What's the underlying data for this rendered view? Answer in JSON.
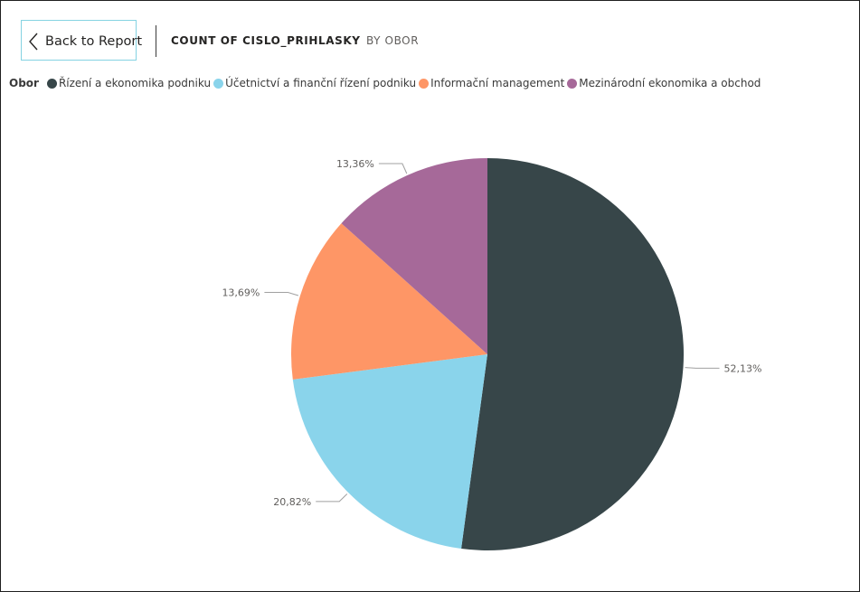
{
  "header": {
    "back_label": "Back to Report",
    "title": "COUNT OF CISLO_PRIHLASKY",
    "subtitle": "BY OBOR"
  },
  "legend": {
    "title": "Obor",
    "items": [
      {
        "label": "Řízení a ekonomika podniku",
        "color": "#374649"
      },
      {
        "label": "Účetnictví a finanční řízení podniku",
        "color": "#8ad4eb"
      },
      {
        "label": "Informační management",
        "color": "#fe9666"
      },
      {
        "label": "Mezinárodní ekonomika a obchod",
        "color": "#a66999"
      }
    ]
  },
  "chart_data": {
    "type": "pie",
    "title": "COUNT OF CISLO_PRIHLASKY BY OBOR",
    "legend_title": "Obor",
    "legend_position": "top-left",
    "start_angle_deg": 0,
    "direction": "clockwise",
    "slices": [
      {
        "label": "Řízení a ekonomika podniku",
        "value": 52.13,
        "display": "52,13%",
        "color": "#374649"
      },
      {
        "label": "Účetnictví a finanční řízení podniku",
        "value": 20.82,
        "display": "20,82%",
        "color": "#8ad4eb"
      },
      {
        "label": "Informační management",
        "value": 13.69,
        "display": "13,69%",
        "color": "#fe9666"
      },
      {
        "label": "Mezinárodní ekonomika a obchod",
        "value": 13.36,
        "display": "13,36%",
        "color": "#a66999"
      }
    ]
  }
}
